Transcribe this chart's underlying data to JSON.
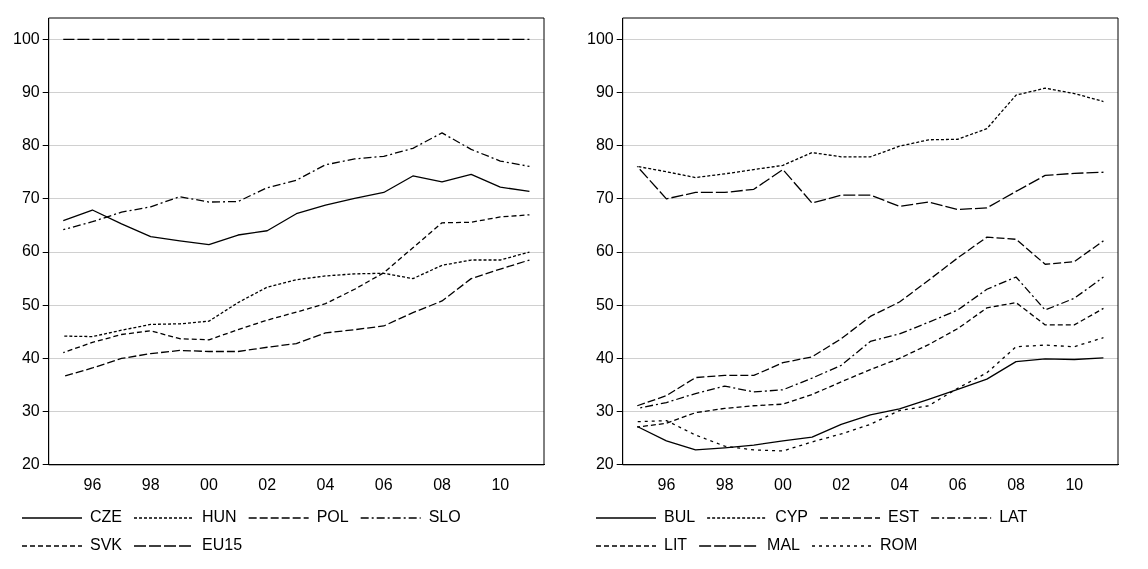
{
  "chart_data": [
    {
      "type": "line",
      "categories": [
        null,
        "96",
        null,
        "98",
        null,
        "00",
        null,
        "02",
        null,
        "04",
        null,
        "06",
        null,
        "08",
        null,
        "10",
        null
      ],
      "ylim": [
        20,
        104
      ],
      "yticks": [
        20,
        30,
        40,
        50,
        60,
        70,
        80,
        90,
        100
      ],
      "grid": "y",
      "legend": "bottom",
      "marker": "none",
      "series": [
        {
          "name": "CZE",
          "color": "#000000",
          "line_style": "solid",
          "values": [
            65.9,
            67.9,
            65.3,
            62.9,
            62.1,
            61.4,
            63.2,
            64.0,
            67.2,
            68.8,
            70.1,
            71.2,
            74.3,
            73.2,
            74.6,
            72.2,
            71.4
          ]
        },
        {
          "name": "HUN",
          "color": "#000000",
          "line_style": "dashed",
          "values": [
            44.2,
            44.1,
            45.3,
            46.4,
            46.5,
            47.0,
            50.5,
            53.4,
            54.8,
            55.5,
            55.9,
            56.0,
            55.0,
            57.5,
            58.5,
            58.5,
            60.0
          ]
        },
        {
          "name": "POL",
          "color": "#000000",
          "line_style": "dashed",
          "values": [
            36.6,
            38.2,
            40.0,
            40.9,
            41.5,
            41.3,
            41.3,
            42.1,
            42.8,
            44.8,
            45.4,
            46.1,
            48.6,
            50.8,
            55.0,
            56.8,
            58.5
          ]
        },
        {
          "name": "SLO",
          "color": "#000000",
          "line_style": "dashed",
          "values": [
            64.2,
            65.7,
            67.5,
            68.5,
            70.4,
            69.4,
            69.5,
            72.1,
            73.5,
            76.4,
            77.5,
            78.0,
            79.5,
            82.4,
            79.3,
            77.1,
            76.1
          ]
        },
        {
          "name": "SVK",
          "color": "#000000",
          "line_style": "dashed",
          "values": [
            41.1,
            43.0,
            44.5,
            45.2,
            43.7,
            43.5,
            45.4,
            47.2,
            48.7,
            50.3,
            53.0,
            56.1,
            60.8,
            65.5,
            65.6,
            66.6,
            67.0
          ]
        },
        {
          "name": "EU15",
          "color": "#000000",
          "line_style": "dashed",
          "values": [
            100,
            100,
            100,
            100,
            100,
            100,
            100,
            100,
            100,
            100,
            100,
            100,
            100,
            100,
            100,
            100,
            100
          ]
        }
      ]
    },
    {
      "type": "line",
      "categories": [
        null,
        "96",
        null,
        "98",
        null,
        "00",
        null,
        "02",
        null,
        "04",
        null,
        "06",
        null,
        "08",
        null,
        "10",
        null
      ],
      "ylim": [
        20,
        104
      ],
      "yticks": [
        20,
        30,
        40,
        50,
        60,
        70,
        80,
        90,
        100
      ],
      "grid": "y",
      "legend": "bottom",
      "marker": "none",
      "series": [
        {
          "name": "BUL",
          "color": "#000000",
          "line_style": "solid",
          "values": [
            27.2,
            24.5,
            22.8,
            23.2,
            23.7,
            24.5,
            25.2,
            27.6,
            29.4,
            30.5,
            32.3,
            34.2,
            36.1,
            39.4,
            39.9,
            39.8,
            40.1
          ]
        },
        {
          "name": "CYP",
          "color": "#000000",
          "line_style": "dashed",
          "values": [
            76.1,
            75.1,
            74.0,
            74.7,
            75.5,
            76.3,
            78.7,
            77.9,
            77.9,
            79.9,
            81.1,
            81.2,
            83.2,
            89.5,
            90.8,
            89.8,
            88.3
          ]
        },
        {
          "name": "EST",
          "color": "#000000",
          "line_style": "dashed",
          "values": [
            31.1,
            33.0,
            36.4,
            36.8,
            36.8,
            39.2,
            40.3,
            43.7,
            47.9,
            50.6,
            54.7,
            58.9,
            62.8,
            62.4,
            57.7,
            58.2,
            62.1
          ]
        },
        {
          "name": "LAT",
          "color": "#000000",
          "line_style": "dashed",
          "values": [
            30.6,
            31.7,
            33.4,
            34.8,
            33.7,
            34.1,
            36.3,
            38.7,
            43.2,
            44.6,
            46.8,
            49.1,
            53.0,
            55.3,
            49.1,
            51.3,
            55.3
          ]
        },
        {
          "name": "LIT",
          "color": "#000000",
          "line_style": "dashed",
          "values": [
            27.1,
            27.8,
            29.8,
            30.6,
            31.1,
            31.4,
            33.2,
            35.6,
            37.9,
            40.0,
            42.6,
            45.6,
            49.5,
            50.5,
            46.3,
            46.3,
            49.4
          ]
        },
        {
          "name": "MAL",
          "color": "#000000",
          "line_style": "dashed",
          "values": [
            76.1,
            70.0,
            71.2,
            71.2,
            71.8,
            75.5,
            69.2,
            70.7,
            70.7,
            68.6,
            69.4,
            68.0,
            68.3,
            71.4,
            74.4,
            74.8,
            75.0
          ]
        },
        {
          "name": "ROM",
          "color": "#000000",
          "line_style": "dashed",
          "values": [
            28.1,
            28.3,
            25.6,
            23.5,
            22.8,
            22.6,
            24.3,
            25.8,
            27.6,
            30.2,
            31.1,
            34.4,
            37.3,
            42.2,
            42.5,
            42.2,
            43.9
          ]
        }
      ]
    }
  ]
}
